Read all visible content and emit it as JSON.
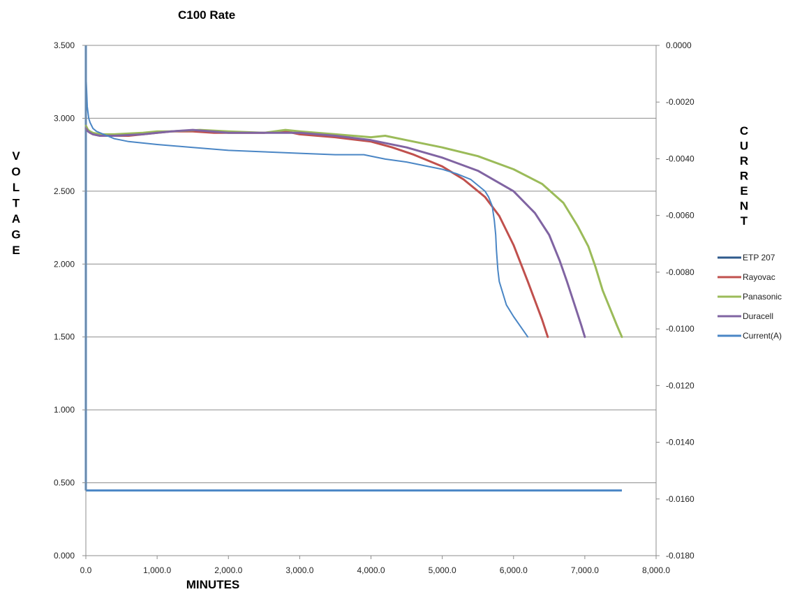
{
  "chart_data": {
    "type": "line",
    "title": "C100 Rate",
    "xlabel": "MINUTES",
    "ylabel": "VOLTAGE",
    "y2label": "CURRENT",
    "xlim": [
      0,
      8000
    ],
    "ylim": [
      0,
      3.5
    ],
    "y2lim": [
      -0.018,
      0
    ],
    "x_ticks": [
      "0.0",
      "1,000.0",
      "2,000.0",
      "3,000.0",
      "4,000.0",
      "5,000.0",
      "6,000.0",
      "7,000.0",
      "8,000.0"
    ],
    "y_ticks": [
      "0.000",
      "0.500",
      "1.000",
      "1.500",
      "2.000",
      "2.500",
      "3.000",
      "3.500"
    ],
    "y2_ticks": [
      "0.0000",
      "-0.0020",
      "-0.0040",
      "-0.0060",
      "-0.0080",
      "-0.0100",
      "-0.0120",
      "-0.0140",
      "-0.0160",
      "-0.0180"
    ],
    "grid": "horizontal",
    "legend_position": "right",
    "series": [
      {
        "name": "ETP 207",
        "color": "#2e5a8c",
        "width": 3,
        "axis": "left",
        "x": [],
        "y": []
      },
      {
        "name": "Rayovac",
        "color": "#c0504d",
        "width": 3,
        "axis": "left",
        "x": [
          0,
          30,
          60,
          100,
          200,
          400,
          600,
          800,
          1000,
          1200,
          1500,
          1800,
          2000,
          2500,
          2800,
          3000,
          3500,
          4000,
          4300,
          4600,
          5000,
          5300,
          5600,
          5800,
          6000,
          6200,
          6300,
          6400,
          6480
        ],
        "y": [
          2.93,
          2.91,
          2.9,
          2.89,
          2.88,
          2.88,
          2.88,
          2.89,
          2.9,
          2.91,
          2.91,
          2.9,
          2.9,
          2.9,
          2.91,
          2.89,
          2.87,
          2.84,
          2.8,
          2.75,
          2.67,
          2.58,
          2.46,
          2.33,
          2.13,
          1.88,
          1.75,
          1.62,
          1.5
        ]
      },
      {
        "name": "Panasonic",
        "color": "#9bbb59",
        "width": 3,
        "axis": "left",
        "x": [
          0,
          30,
          60,
          100,
          200,
          400,
          800,
          1000,
          1200,
          1600,
          2000,
          2500,
          2800,
          3000,
          3500,
          4000,
          4200,
          4500,
          5000,
          5500,
          6000,
          6400,
          6700,
          6900,
          7050,
          7150,
          7250,
          7350,
          7450,
          7520
        ],
        "y": [
          2.95,
          2.92,
          2.91,
          2.9,
          2.89,
          2.89,
          2.9,
          2.91,
          2.91,
          2.92,
          2.91,
          2.9,
          2.92,
          2.91,
          2.89,
          2.87,
          2.88,
          2.85,
          2.8,
          2.74,
          2.65,
          2.55,
          2.42,
          2.26,
          2.12,
          1.98,
          1.82,
          1.7,
          1.58,
          1.5
        ]
      },
      {
        "name": "Duracell",
        "color": "#8064a2",
        "width": 3,
        "axis": "left",
        "x": [
          0,
          30,
          60,
          100,
          200,
          400,
          800,
          1000,
          1200,
          1500,
          2000,
          2500,
          3000,
          3500,
          4000,
          4500,
          5000,
          5500,
          6000,
          6300,
          6500,
          6650,
          6750,
          6850,
          6950,
          7000
        ],
        "y": [
          2.93,
          2.91,
          2.9,
          2.89,
          2.88,
          2.88,
          2.89,
          2.9,
          2.91,
          2.92,
          2.9,
          2.9,
          2.9,
          2.88,
          2.85,
          2.8,
          2.73,
          2.64,
          2.5,
          2.35,
          2.2,
          2.02,
          1.88,
          1.73,
          1.58,
          1.5
        ]
      },
      {
        "name": "Current(A)",
        "color": "#4a86c5",
        "width": 2,
        "axis": "left",
        "x": [
          0,
          10,
          20,
          40,
          60,
          100,
          150,
          200,
          300,
          400,
          600,
          800,
          1000,
          1500,
          2000,
          2500,
          3000,
          3500,
          3900,
          4200,
          4500,
          4800,
          5000,
          5200,
          5400,
          5500,
          5600,
          5650,
          5700,
          5730,
          5750,
          5760,
          5780,
          5800,
          5850,
          5900,
          6000,
          6100,
          6200
        ],
        "y": [
          3.31,
          3.2,
          3.08,
          3.0,
          2.97,
          2.93,
          2.91,
          2.9,
          2.88,
          2.86,
          2.84,
          2.83,
          2.82,
          2.8,
          2.78,
          2.77,
          2.76,
          2.75,
          2.75,
          2.72,
          2.7,
          2.67,
          2.65,
          2.62,
          2.58,
          2.54,
          2.5,
          2.46,
          2.4,
          2.3,
          2.2,
          2.1,
          1.96,
          1.88,
          1.8,
          1.72,
          1.64,
          1.57,
          1.5
        ]
      }
    ],
    "hline": {
      "y2": -0.0157,
      "x_end": 7520,
      "color": "#4a86c5"
    },
    "vline": {
      "x": 0,
      "y2_from": -0.0157,
      "y2_to": 0,
      "color": "#4a86c5"
    }
  }
}
